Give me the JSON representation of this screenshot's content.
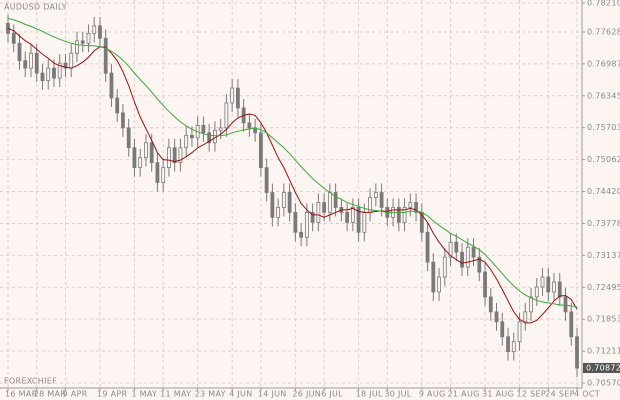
{
  "chart_data": {
    "type": "candlestick",
    "title": "AUDUSD DAILY",
    "watermark": "FOREXCHIEF",
    "categories": [
      "16 MAR",
      null,
      null,
      null,
      null,
      "28 MAR",
      null,
      null,
      null,
      null,
      "9 APR",
      null,
      null,
      null,
      null,
      null,
      "19 APR",
      null,
      null,
      null,
      null,
      null,
      "1 MAY",
      null,
      null,
      null,
      null,
      "11 MAY",
      null,
      null,
      null,
      null,
      null,
      "23 MAY",
      null,
      null,
      null,
      null,
      null,
      "4 JUN",
      null,
      null,
      null,
      null,
      "14 JUN",
      null,
      null,
      null,
      null,
      null,
      "26 JUN",
      null,
      null,
      null,
      null,
      "6 JUL",
      null,
      null,
      null,
      null,
      null,
      "18 JUL",
      null,
      null,
      null,
      null,
      "30 JUL",
      null,
      null,
      null,
      null,
      null,
      "9 AUG",
      null,
      null,
      null,
      null,
      "21 AUG",
      null,
      null,
      null,
      null,
      null,
      "31 AUG",
      null,
      null,
      null,
      null,
      null,
      "12 SEP",
      null,
      null,
      null,
      null,
      "24 SEP",
      null,
      null,
      null,
      null,
      "4 OCT"
    ],
    "open": [
      0.778,
      0.776,
      0.774,
      0.7705,
      0.769,
      0.772,
      0.768,
      0.7665,
      0.769,
      0.767,
      0.77,
      0.769,
      0.772,
      0.7745,
      0.774,
      0.776,
      0.7775,
      0.775,
      0.768,
      0.763,
      0.76,
      0.757,
      0.753,
      0.749,
      0.751,
      0.754,
      0.75,
      0.746,
      0.749,
      0.753,
      0.75,
      0.753,
      0.7555,
      0.755,
      0.7575,
      0.756,
      0.754,
      0.7565,
      0.757,
      0.762,
      0.765,
      0.761,
      0.758,
      0.757,
      0.756,
      0.749,
      0.744,
      0.739,
      0.741,
      0.744,
      0.74,
      0.736,
      0.735,
      0.74,
      0.738,
      0.742,
      0.74,
      0.744,
      0.741,
      0.74,
      0.738,
      0.741,
      0.736,
      0.74,
      0.743,
      0.744,
      0.741,
      0.739,
      0.741,
      0.738,
      0.741,
      0.742,
      0.74,
      0.736,
      0.73,
      0.724,
      0.727,
      0.731,
      0.734,
      0.732,
      0.729,
      0.733,
      0.731,
      0.728,
      0.723,
      0.72,
      0.718,
      0.715,
      0.712,
      0.714,
      0.718,
      0.72,
      0.723,
      0.725,
      0.727,
      0.724,
      0.726,
      0.723,
      0.72,
      0.715
    ],
    "high": [
      0.7798,
      0.7778,
      0.7758,
      0.7723,
      0.7738,
      0.7738,
      0.7698,
      0.7708,
      0.7708,
      0.7718,
      0.7718,
      0.7738,
      0.7763,
      0.7763,
      0.7778,
      0.7793,
      0.7793,
      0.7768,
      0.7698,
      0.7648,
      0.7618,
      0.7588,
      0.7548,
      0.7528,
      0.7558,
      0.7558,
      0.7518,
      0.7508,
      0.7548,
      0.7548,
      0.7548,
      0.7573,
      0.7573,
      0.7593,
      0.7593,
      0.7578,
      0.7583,
      0.7588,
      0.7638,
      0.7668,
      0.7668,
      0.7628,
      0.7598,
      0.7588,
      0.7578,
      0.7508,
      0.7458,
      0.7428,
      0.7458,
      0.7458,
      0.7418,
      0.7378,
      0.7418,
      0.7418,
      0.7438,
      0.7438,
      0.7458,
      0.7458,
      0.7428,
      0.7418,
      0.7428,
      0.7428,
      0.7418,
      0.7448,
      0.7458,
      0.7458,
      0.7428,
      0.7428,
      0.7428,
      0.7428,
      0.7438,
      0.7438,
      0.7418,
      0.7378,
      0.7318,
      0.7288,
      0.7328,
      0.7358,
      0.7358,
      0.7338,
      0.7348,
      0.7348,
      0.7328,
      0.7298,
      0.7248,
      0.7218,
      0.7198,
      0.7168,
      0.7158,
      0.7198,
      0.7218,
      0.7248,
      0.7268,
      0.7288,
      0.7288,
      0.7278,
      0.7278,
      0.7248,
      0.7218,
      0.7168
    ],
    "low": [
      0.7742,
      0.7722,
      0.7687,
      0.7672,
      0.7672,
      0.7662,
      0.7647,
      0.7647,
      0.7652,
      0.7652,
      0.7672,
      0.7672,
      0.7702,
      0.7722,
      0.7722,
      0.7742,
      0.7732,
      0.7662,
      0.7612,
      0.7582,
      0.7552,
      0.7512,
      0.7472,
      0.7472,
      0.7492,
      0.7482,
      0.7442,
      0.7442,
      0.7472,
      0.7482,
      0.7482,
      0.7512,
      0.7532,
      0.7532,
      0.7542,
      0.7522,
      0.7522,
      0.7547,
      0.7552,
      0.7602,
      0.7592,
      0.7562,
      0.7552,
      0.7542,
      0.7472,
      0.7422,
      0.7372,
      0.7372,
      0.7392,
      0.7382,
      0.7342,
      0.7332,
      0.7332,
      0.7362,
      0.7362,
      0.7382,
      0.7382,
      0.7392,
      0.7382,
      0.7362,
      0.7362,
      0.7342,
      0.7342,
      0.7382,
      0.7412,
      0.7392,
      0.7372,
      0.7372,
      0.7362,
      0.7362,
      0.7392,
      0.7382,
      0.7342,
      0.7282,
      0.7222,
      0.7222,
      0.7252,
      0.7292,
      0.7302,
      0.7272,
      0.7272,
      0.7292,
      0.7262,
      0.7212,
      0.7182,
      0.7162,
      0.7132,
      0.7102,
      0.7102,
      0.7122,
      0.7162,
      0.7182,
      0.7212,
      0.7232,
      0.7222,
      0.7222,
      0.7212,
      0.7182,
      0.7132,
      0.7069
    ],
    "close": [
      0.776,
      0.774,
      0.7705,
      0.769,
      0.772,
      0.768,
      0.7665,
      0.769,
      0.767,
      0.77,
      0.769,
      0.772,
      0.7745,
      0.774,
      0.776,
      0.7775,
      0.775,
      0.768,
      0.763,
      0.76,
      0.757,
      0.753,
      0.749,
      0.751,
      0.754,
      0.75,
      0.746,
      0.749,
      0.753,
      0.75,
      0.753,
      0.7555,
      0.755,
      0.7575,
      0.756,
      0.754,
      0.7565,
      0.757,
      0.762,
      0.765,
      0.761,
      0.758,
      0.757,
      0.756,
      0.749,
      0.744,
      0.739,
      0.741,
      0.744,
      0.74,
      0.736,
      0.735,
      0.74,
      0.738,
      0.742,
      0.74,
      0.744,
      0.741,
      0.74,
      0.738,
      0.741,
      0.736,
      0.74,
      0.743,
      0.744,
      0.741,
      0.739,
      0.741,
      0.738,
      0.741,
      0.742,
      0.74,
      0.736,
      0.73,
      0.724,
      0.727,
      0.731,
      0.734,
      0.732,
      0.729,
      0.733,
      0.731,
      0.728,
      0.723,
      0.72,
      0.718,
      0.715,
      0.712,
      0.714,
      0.718,
      0.72,
      0.723,
      0.725,
      0.727,
      0.724,
      0.726,
      0.723,
      0.72,
      0.715,
      0.7087
    ],
    "candle_color": "#7a7a7a",
    "overlays": [
      {
        "color": "#9a1010",
        "values": [
          0.777,
          0.7765,
          0.7755,
          0.7745,
          0.7738,
          0.7728,
          0.7718,
          0.771,
          0.77,
          0.7695,
          0.7692,
          0.769,
          0.7695,
          0.7702,
          0.7712,
          0.7725,
          0.7733,
          0.7732,
          0.772,
          0.7705,
          0.7683,
          0.7655,
          0.7622,
          0.7592,
          0.7568,
          0.7545,
          0.752,
          0.7506,
          0.7505,
          0.7502,
          0.7505,
          0.7512,
          0.752,
          0.753,
          0.7536,
          0.7543,
          0.755,
          0.7557,
          0.7567,
          0.758,
          0.759,
          0.7595,
          0.7598,
          0.7595,
          0.758,
          0.756,
          0.7535,
          0.751,
          0.749,
          0.7465,
          0.744,
          0.7418,
          0.7405,
          0.7395,
          0.7395,
          0.739,
          0.7395,
          0.74,
          0.7405,
          0.7405,
          0.7408,
          0.7402,
          0.74,
          0.74,
          0.7402,
          0.7403,
          0.7402,
          0.7405,
          0.7405,
          0.7405,
          0.7408,
          0.7405,
          0.7395,
          0.738,
          0.7358,
          0.734,
          0.7325,
          0.7313,
          0.7305,
          0.7298,
          0.73,
          0.7303,
          0.7306,
          0.73,
          0.7285,
          0.7266,
          0.7245,
          0.7222,
          0.72,
          0.7185,
          0.7178,
          0.7178,
          0.7183,
          0.7195,
          0.7208,
          0.7222,
          0.7232,
          0.7233,
          0.7225,
          0.7205
        ]
      },
      {
        "color": "#3aa83a",
        "values": [
          0.779,
          0.7787,
          0.7783,
          0.7778,
          0.7774,
          0.7769,
          0.7764,
          0.7758,
          0.7753,
          0.7748,
          0.7744,
          0.774,
          0.7737,
          0.7736,
          0.7735,
          0.7735,
          0.7733,
          0.773,
          0.7724,
          0.7716,
          0.7706,
          0.7694,
          0.768,
          0.7667,
          0.7655,
          0.7642,
          0.7628,
          0.7615,
          0.7603,
          0.7592,
          0.7582,
          0.7574,
          0.7567,
          0.7562,
          0.7558,
          0.7555,
          0.7554,
          0.7554,
          0.7556,
          0.756,
          0.7563,
          0.7566,
          0.7568,
          0.757,
          0.7566,
          0.756,
          0.755,
          0.754,
          0.753,
          0.7518,
          0.7505,
          0.7492,
          0.748,
          0.7468,
          0.7458,
          0.7448,
          0.744,
          0.7432,
          0.7426,
          0.742,
          0.7416,
          0.7412,
          0.7408,
          0.7405,
          0.7404,
          0.7402,
          0.74,
          0.74,
          0.74,
          0.74,
          0.7402,
          0.7403,
          0.74,
          0.7393,
          0.7383,
          0.7374,
          0.7366,
          0.7358,
          0.7352,
          0.7345,
          0.7338,
          0.7332,
          0.7325,
          0.7315,
          0.7303,
          0.729,
          0.7277,
          0.7264,
          0.7252,
          0.7242,
          0.7234,
          0.7228,
          0.7223,
          0.722,
          0.7218,
          0.7216,
          0.7214,
          0.7213,
          0.7212,
          0.721
        ]
      }
    ],
    "ylim": [
      0.7057,
      0.7821
    ],
    "yticks": [
      {
        "value": 0.7821,
        "label": "0.78210"
      },
      0.77628,
      0.76987,
      0.76345,
      0.75703,
      0.75062,
      {
        "value": 0.7442,
        "label": "0.74420"
      },
      0.73778,
      0.73137,
      0.72495,
      0.71853,
      0.71211,
      {
        "value": 0.7057,
        "label": "0.70570"
      }
    ],
    "last_price": 0.70872,
    "grid": true
  }
}
